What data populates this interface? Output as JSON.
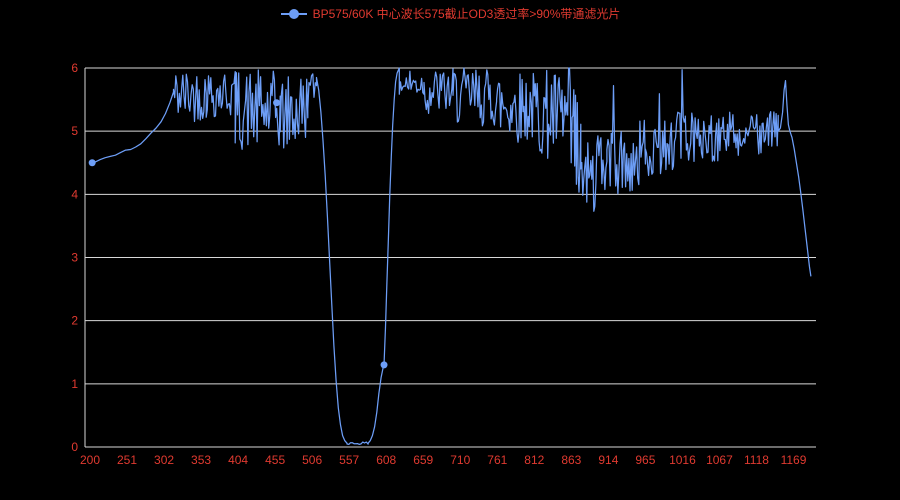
{
  "legend": {
    "label": "BP575/60K 中心波长575截止OD3透过率>90%带通滤光片"
  },
  "colors": {
    "background": "#000000",
    "line": "#6d9ef7",
    "axis_label": "#e03a30",
    "legend_text": "#e03a30",
    "grid": "#d9d9d9"
  },
  "chart_data": {
    "type": "line",
    "title": "BP575/60K 中心波长575截止OD3透过率>90%带通滤光片",
    "legend_entries": [
      "BP575/60K 中心波长575截止OD3透过率>90%带通滤光片"
    ],
    "legend_position": "top-center",
    "xlabel": "",
    "ylabel": "",
    "grid": true,
    "x_tick_labels": [
      200,
      251,
      302,
      353,
      404,
      455,
      506,
      557,
      608,
      659,
      710,
      761,
      812,
      863,
      914,
      965,
      1016,
      1067,
      1118,
      1169
    ],
    "y_tick_labels": [
      0,
      1,
      2,
      3,
      4,
      5,
      6
    ],
    "xlim": [
      200,
      1200
    ],
    "ylim": [
      0,
      6
    ],
    "noise_seed": 42,
    "markers": [
      [
        203,
        4.5
      ],
      [
        457,
        5.45
      ],
      [
        605,
        1.3
      ]
    ],
    "pieces": [
      {
        "type": "anchors",
        "pts": [
          [
            200,
            4.5
          ],
          [
            207,
            4.51
          ],
          [
            214,
            4.55
          ],
          [
            221,
            4.58
          ],
          [
            228,
            4.6
          ],
          [
            235,
            4.62
          ],
          [
            242,
            4.66
          ],
          [
            249,
            4.7
          ],
          [
            256,
            4.71
          ],
          [
            263,
            4.75
          ],
          [
            270,
            4.8
          ],
          [
            277,
            4.88
          ],
          [
            284,
            4.97
          ],
          [
            291,
            5.05
          ],
          [
            298,
            5.15
          ],
          [
            304,
            5.28
          ],
          [
            310,
            5.45
          ],
          [
            315,
            5.62
          ]
        ]
      },
      {
        "type": "noise",
        "x0": 315,
        "x1": 360,
        "step": 1.6,
        "base": [
          5.9,
          5.9
        ],
        "jitter": [
          -0.75,
          0.1
        ]
      },
      {
        "type": "noise",
        "x0": 360,
        "x1": 400,
        "step": 1.6,
        "base": [
          5.85,
          5.85
        ],
        "jitter": [
          -0.65,
          0.15
        ]
      },
      {
        "type": "noise",
        "x0": 400,
        "x1": 462,
        "step": 1.6,
        "base": [
          5.55,
          5.5
        ],
        "jitter": [
          -0.85,
          0.45
        ]
      },
      {
        "type": "noise",
        "x0": 462,
        "x1": 500,
        "step": 1.6,
        "base": [
          5.45,
          5.6
        ],
        "jitter": [
          -0.85,
          0.4
        ]
      },
      {
        "type": "noise",
        "x0": 500,
        "x1": 512,
        "step": 1.7,
        "base": [
          5.75,
          5.85
        ],
        "jitter": [
          -0.4,
          0.15
        ]
      },
      {
        "type": "anchors",
        "pts": [
          [
            512,
            5.85
          ],
          [
            515,
            5.65
          ],
          [
            518,
            5.3
          ],
          [
            521,
            4.85
          ],
          [
            524,
            4.3
          ],
          [
            527,
            3.65
          ],
          [
            530,
            2.95
          ],
          [
            533,
            2.25
          ],
          [
            536,
            1.6
          ],
          [
            539,
            1.05
          ],
          [
            542,
            0.62
          ],
          [
            545,
            0.35
          ],
          [
            548,
            0.18
          ],
          [
            551,
            0.1
          ],
          [
            554,
            0.06
          ]
        ]
      },
      {
        "type": "noise",
        "x0": 554,
        "x1": 583,
        "step": 2.5,
        "base": [
          0.04,
          0.04
        ],
        "jitter": [
          0,
          0.04
        ]
      },
      {
        "type": "anchors",
        "pts": [
          [
            583,
            0.06
          ],
          [
            586,
            0.1
          ],
          [
            589,
            0.18
          ],
          [
            592,
            0.32
          ],
          [
            595,
            0.55
          ],
          [
            598,
            0.85
          ],
          [
            601,
            1.1
          ],
          [
            604,
            1.27
          ],
          [
            605,
            1.3
          ],
          [
            607,
            1.9
          ],
          [
            609,
            2.6
          ],
          [
            611,
            3.3
          ],
          [
            613,
            4.0
          ],
          [
            615,
            4.6
          ],
          [
            617,
            5.1
          ],
          [
            619,
            5.5
          ],
          [
            621,
            5.78
          ],
          [
            623,
            5.92
          ],
          [
            626,
            6.0
          ]
        ]
      },
      {
        "type": "noise",
        "x0": 626,
        "x1": 660,
        "step": 1.6,
        "base": [
          6,
          6
        ],
        "jitter": [
          -0.5,
          0
        ]
      },
      {
        "type": "noise",
        "x0": 660,
        "x1": 700,
        "step": 1.6,
        "base": [
          6,
          6
        ],
        "jitter": [
          -0.75,
          0
        ]
      },
      {
        "type": "noise",
        "x0": 700,
        "x1": 760,
        "step": 1.5,
        "base": [
          5.95,
          5.9
        ],
        "jitter": [
          -0.85,
          0.1
        ]
      },
      {
        "type": "noise",
        "x0": 760,
        "x1": 812,
        "step": 1.4,
        "base": [
          5.85,
          5.8
        ],
        "jitter": [
          -1.0,
          0.15
        ]
      },
      {
        "type": "noise",
        "x0": 812,
        "x1": 858,
        "step": 1.3,
        "base": [
          5.75,
          5.6
        ],
        "jitter": [
          -1.15,
          0.3
        ]
      },
      {
        "type": "noise",
        "x0": 858,
        "x1": 876,
        "step": 1.2,
        "base": [
          5.2,
          4.3
        ],
        "jitter": [
          -1.2,
          1.2
        ],
        "clip": [
          3.5,
          6
        ]
      },
      {
        "type": "noise",
        "x0": 876,
        "x1": 912,
        "step": 1.4,
        "base": [
          4.15,
          4.3
        ],
        "jitter": [
          -0.55,
          0.75
        ],
        "spike": {
          "p": 0.07,
          "add": [
            0.9,
            1.7
          ]
        },
        "clip": [
          3.55,
          6
        ]
      },
      {
        "type": "noise",
        "x0": 912,
        "x1": 965,
        "step": 1.5,
        "base": [
          4.35,
          4.6
        ],
        "jitter": [
          -0.5,
          0.6
        ],
        "spike": {
          "p": 0.05,
          "add": [
            0.6,
            1.3
          ]
        }
      },
      {
        "type": "noise",
        "x0": 965,
        "x1": 1020,
        "step": 1.5,
        "base": [
          4.65,
          4.85
        ],
        "jitter": [
          -0.4,
          0.5
        ],
        "spike": {
          "p": 0.04,
          "add": [
            0.4,
            0.9
          ]
        }
      },
      {
        "type": "noise",
        "x0": 1020,
        "x1": 1090,
        "step": 1.5,
        "base": [
          4.85,
          4.9
        ],
        "jitter": [
          -0.35,
          0.45
        ],
        "spike": {
          "p": 0.03,
          "add": [
            0.3,
            0.7
          ]
        }
      },
      {
        "type": "noise",
        "x0": 1090,
        "x1": 1148,
        "step": 1.5,
        "base": [
          4.9,
          4.95
        ],
        "jitter": [
          -0.3,
          0.4
        ],
        "spike": {
          "p": 0.03,
          "add": [
            0.3,
            0.6
          ]
        }
      },
      {
        "type": "anchors",
        "pts": [
          [
            1148,
            5.0
          ],
          [
            1151,
            5.05
          ],
          [
            1154,
            5.3
          ],
          [
            1156,
            5.65
          ],
          [
            1158,
            5.8
          ],
          [
            1160,
            5.4
          ],
          [
            1162,
            5.1
          ],
          [
            1164,
            5.0
          ],
          [
            1167,
            4.9
          ],
          [
            1170,
            4.72
          ],
          [
            1173,
            4.5
          ],
          [
            1176,
            4.28
          ],
          [
            1179,
            4.02
          ],
          [
            1182,
            3.75
          ],
          [
            1185,
            3.45
          ],
          [
            1188,
            3.15
          ],
          [
            1191,
            2.85
          ],
          [
            1193,
            2.7
          ]
        ]
      }
    ]
  }
}
